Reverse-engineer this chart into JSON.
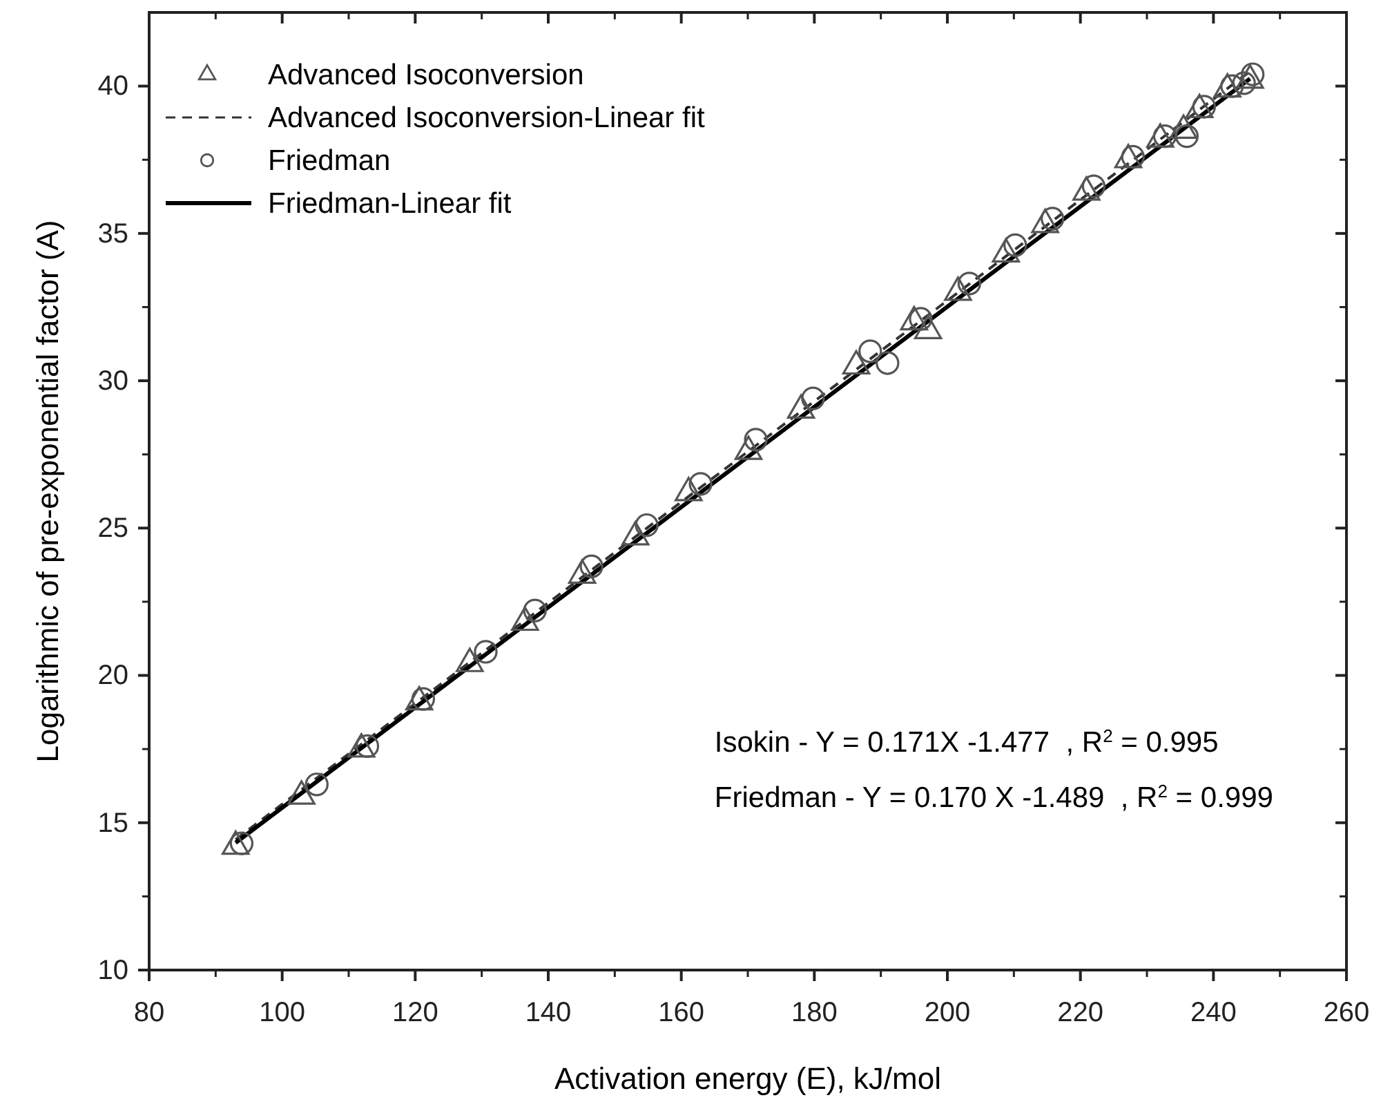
{
  "chart_data": {
    "type": "scatter",
    "xlabel": "Activation energy (E), kJ/mol",
    "ylabel": "Logarithmic of pre-exponential factor (A)",
    "xlim": [
      80,
      260
    ],
    "xticks": [
      80,
      100,
      120,
      140,
      160,
      180,
      200,
      220,
      240,
      260
    ],
    "ylim": [
      10,
      42.5
    ],
    "yticks": [
      10,
      15,
      20,
      25,
      30,
      35,
      40
    ],
    "legend": "top left",
    "grid": false,
    "series": [
      {
        "name": "Advanced Isoconversion",
        "marker": "triangle",
        "color": "#555555",
        "x": [
          93.0,
          102.9,
          111.9,
          120.6,
          128.2,
          136.5,
          145.1,
          153.1,
          161.1,
          170.1,
          178.0,
          186.3,
          195.0,
          197.1,
          201.6,
          208.8,
          214.7,
          220.9,
          227.2,
          232.0,
          235.5,
          237.9,
          242.1,
          245.5
        ],
        "values": [
          14.2,
          15.9,
          17.5,
          19.1,
          20.4,
          21.8,
          23.4,
          24.7,
          26.2,
          27.6,
          29.0,
          30.5,
          32.0,
          31.7,
          33.0,
          34.3,
          35.3,
          36.4,
          37.5,
          38.2,
          38.5,
          39.2,
          39.9,
          40.2
        ]
      },
      {
        "name": "Advanced Isoconversion-Linear fit",
        "type": "line",
        "line_style": "dashed",
        "marker": "none",
        "color": "#333333",
        "x": [
          93.0,
          245.5
        ],
        "values": [
          14.43,
          40.5
        ]
      },
      {
        "name": "Friedman",
        "marker": "circle",
        "color": "#555555",
        "x": [
          93.9,
          105.2,
          112.8,
          121.2,
          130.6,
          138.0,
          146.5,
          154.8,
          162.9,
          171.2,
          179.8,
          188.4,
          191.0,
          196.0,
          203.3,
          210.2,
          215.8,
          222.0,
          227.9,
          232.7,
          236.0,
          238.6,
          242.8,
          244.6,
          245.9
        ],
        "values": [
          14.3,
          16.3,
          17.6,
          19.2,
          20.8,
          22.2,
          23.7,
          25.1,
          26.5,
          28.0,
          29.4,
          31.0,
          30.6,
          32.1,
          33.3,
          34.6,
          35.5,
          36.6,
          37.6,
          38.3,
          38.3,
          39.3,
          40.0,
          40.1,
          40.4
        ]
      },
      {
        "name": "Friedman-Linear fit",
        "type": "line",
        "line_style": "solid",
        "marker": "none",
        "color": "#000000",
        "x": [
          93.0,
          245.5
        ],
        "values": [
          14.32,
          40.25
        ]
      }
    ],
    "annotations": [
      {
        "text": "Isokin - Y = 0.171X -1.477  , R$^{2}$ = 0.995"
      },
      {
        "text": "Friedman - Y = 0.170 X -1.489  , R$^{2}$ = 0.999"
      }
    ]
  }
}
